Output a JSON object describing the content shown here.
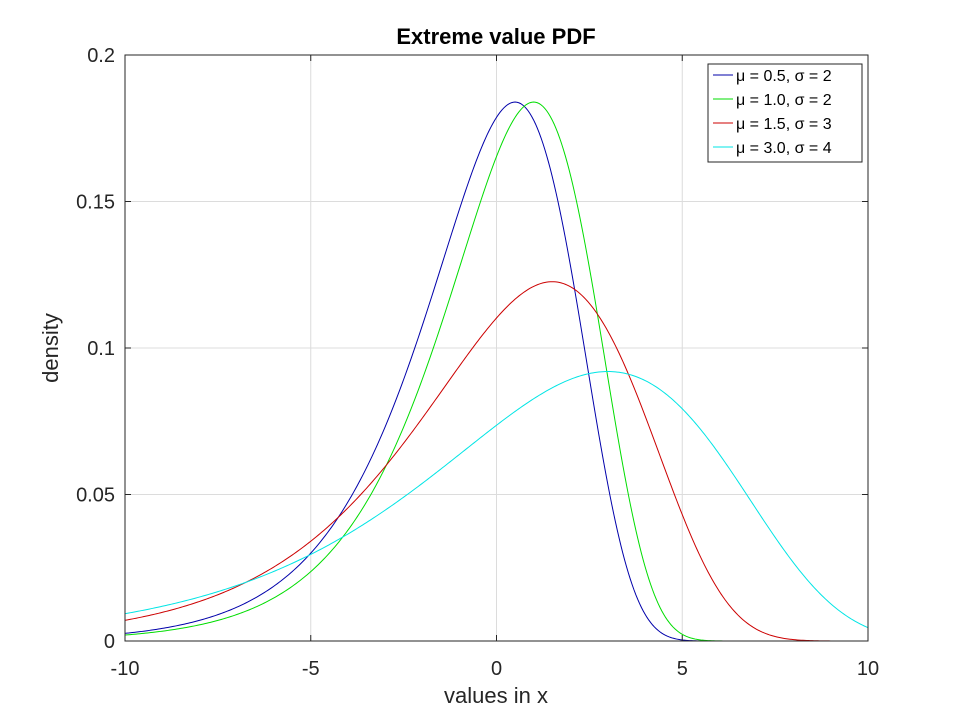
{
  "chart_data": {
    "type": "line",
    "title": "Extreme value PDF",
    "xlabel": "values in x",
    "ylabel": "density",
    "xlim": [
      -10,
      10
    ],
    "ylim": [
      0,
      0.2
    ],
    "grid": true,
    "legend_position": "top-right",
    "x_ticks": [
      -10,
      -5,
      0,
      5,
      10
    ],
    "x_tick_labels": [
      "-10",
      "-5",
      "0",
      "5",
      "10"
    ],
    "y_ticks": [
      0,
      0.05,
      0.1,
      0.15,
      0.2
    ],
    "y_tick_labels": [
      "0",
      "0.05",
      "0.1",
      "0.15",
      "0.2"
    ],
    "x": [
      -10,
      -9,
      -8,
      -7,
      -6,
      -5,
      -4,
      -3,
      -2,
      -1,
      0,
      0.5,
      1,
      1.5,
      2,
      3,
      4,
      5,
      6,
      7,
      8,
      9,
      10
    ],
    "series": [
      {
        "name": "μ = 0.5, σ = 2",
        "mu": 0.5,
        "sigma": 2,
        "color": "#0000aa",
        "values": [
          0.0026,
          0.0044,
          0.0071,
          0.0117,
          0.0187,
          0.0294,
          0.045,
          0.0661,
          0.0998,
          0.1403,
          0.1756,
          0.1839,
          0.1756,
          0.1535,
          0.1209,
          0.0491,
          0.0055,
          4e-05,
          0,
          0,
          0,
          0,
          0
        ]
      },
      {
        "name": "μ = 1.0, σ = 2",
        "mu": 1.0,
        "sigma": 2,
        "color": "#00dd00",
        "values": [
          0.002,
          0.0034,
          0.0057,
          0.0093,
          0.0152,
          0.0243,
          0.0382,
          0.0582,
          0.0864,
          0.1224,
          0.1593,
          0.1756,
          0.1839,
          0.1756,
          0.1535,
          0.0853,
          0.0174,
          0.0006,
          0,
          0,
          0,
          0,
          0
        ]
      },
      {
        "name": "μ = 1.5, σ = 3",
        "mu": 1.5,
        "sigma": 3,
        "color": "#cc0000",
        "values": [
          0.0069,
          0.0097,
          0.0136,
          0.0188,
          0.0257,
          0.0346,
          0.0458,
          0.0593,
          0.0748,
          0.091,
          0.1057,
          0.111,
          0.117,
          0.1226,
          0.1219,
          0.1108,
          0.083,
          0.0447,
          0.0131,
          0.0013,
          2e-05,
          0,
          0
        ]
      },
      {
        "name": "μ = 3.0, σ = 4",
        "mu": 3.0,
        "sigma": 4,
        "color": "#00e5e5",
        "values": [
          0.0093,
          0.012,
          0.0154,
          0.0196,
          0.0247,
          0.0308,
          0.0379,
          0.0458,
          0.0544,
          0.0634,
          0.0722,
          0.0763,
          0.08,
          0.0834,
          0.0862,
          0.092,
          0.09,
          0.08,
          0.0626,
          0.042,
          0.0228,
          0.0093,
          0.0025
        ]
      }
    ]
  }
}
